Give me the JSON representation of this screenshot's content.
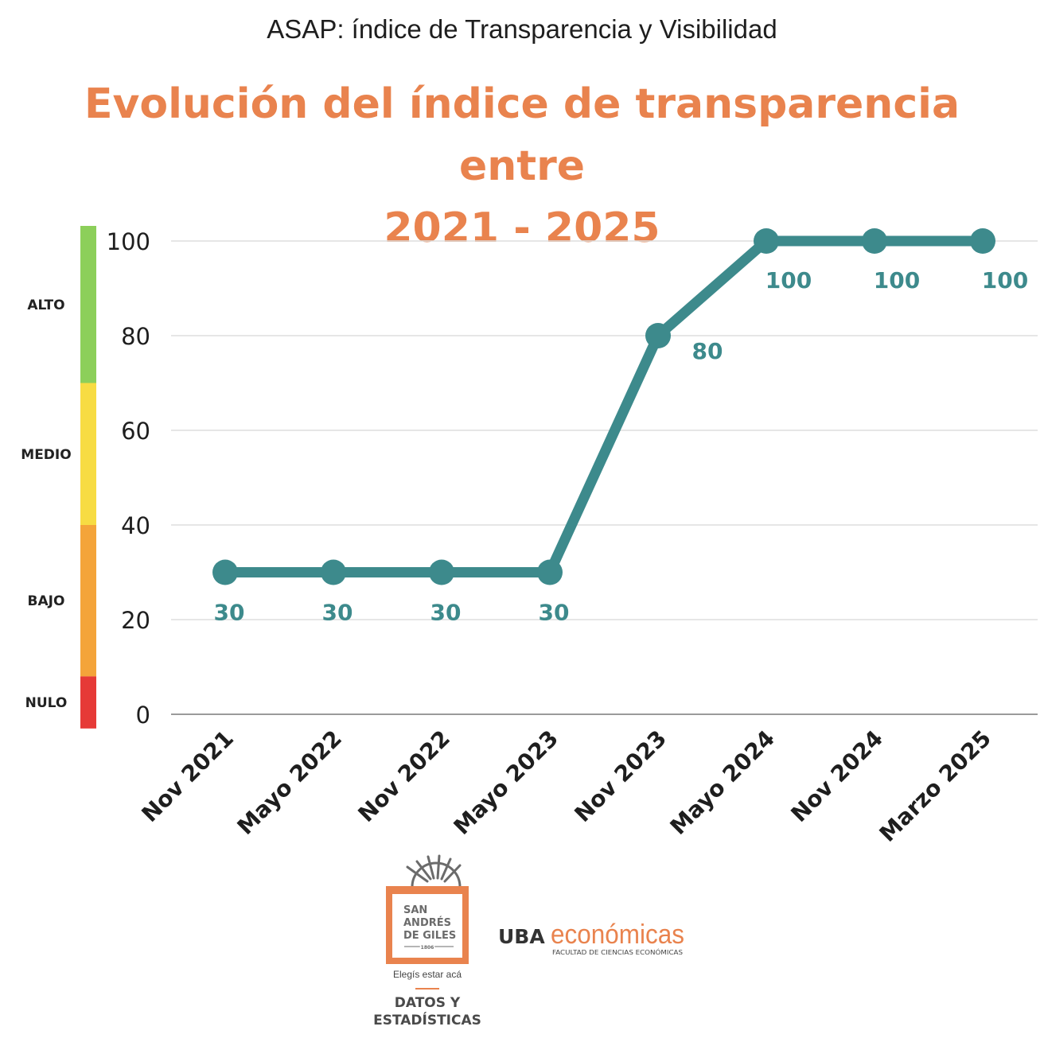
{
  "header": {
    "subtitle": "ASAP: índice de Transparencia y Visibilidad",
    "title_line1": "Evolución del índice de transparencia entre",
    "title_line2": "2021 - 2025"
  },
  "legend_scale": [
    {
      "label": "ALTO",
      "from": 70,
      "to": 100,
      "color": "#8ccf5a"
    },
    {
      "label": "MEDIO",
      "from": 40,
      "to": 70,
      "color": "#f7dc43"
    },
    {
      "label": "BAJO",
      "from": 8,
      "to": 40,
      "color": "#f4a43a"
    },
    {
      "label": "NULO",
      "from": -3,
      "to": 8,
      "color": "#e63a37"
    }
  ],
  "chart_data": {
    "type": "line",
    "categories": [
      "Nov 2021",
      "Mayo 2022",
      "Nov 2022",
      "Mayo 2023",
      "Nov 2023",
      "Mayo 2024",
      "Nov 2024",
      "Marzo 2025"
    ],
    "series": [
      {
        "values": [
          30,
          30,
          30,
          30,
          80,
          100,
          100,
          100
        ],
        "color": "#3d8a8c"
      }
    ],
    "data_labels": [
      "30",
      "30",
      "30",
      "30",
      "80",
      "100",
      "100",
      "100"
    ],
    "yticks": [
      0,
      20,
      40,
      60,
      80,
      100
    ],
    "ylim": [
      0,
      100
    ],
    "grid": true,
    "title": "Evolución del índice de transparencia entre 2021 - 2025",
    "xlabel": "",
    "ylabel": ""
  },
  "footer": {
    "sag_logo": {
      "line1": "SAN",
      "line2": "ANDRÉS",
      "line3": "DE GILES",
      "year": "1806",
      "slogan": "Elegís estar acá",
      "color": "#e9834e"
    },
    "dept_line1": "DATOS Y",
    "dept_line2": "ESTADÍSTICAS",
    "uba_logo": {
      "bold": "UBA",
      "light": "económicas",
      "tagline": "FACULTAD DE CIENCIAS ECONÓMICAS"
    }
  }
}
